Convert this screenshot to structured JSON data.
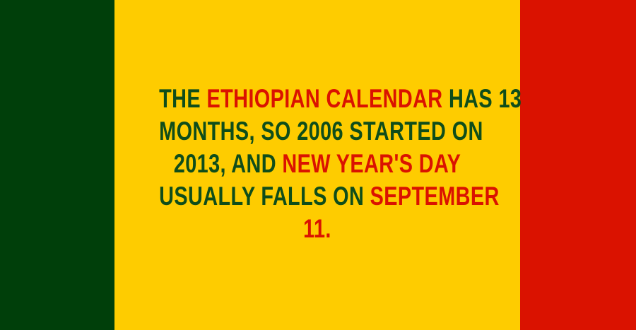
{
  "colors": {
    "green": "#003f0a",
    "yellow": "#fecc00",
    "red": "#da1200",
    "text_green": "#0f4d1a",
    "text_red": "#da1200"
  },
  "fact": {
    "line1": {
      "a": "THE ",
      "b": "ETHIOPIAN CALENDAR",
      "c": " HAS 13"
    },
    "line2": "MONTHS, SO 2006 STARTED ON",
    "line3": {
      "a": "2013, AND ",
      "b": "NEW YEAR'S DAY"
    },
    "line4": {
      "a": "USUALLY FALLS ON ",
      "b": "SEPTEMBER"
    },
    "line5": "11."
  }
}
